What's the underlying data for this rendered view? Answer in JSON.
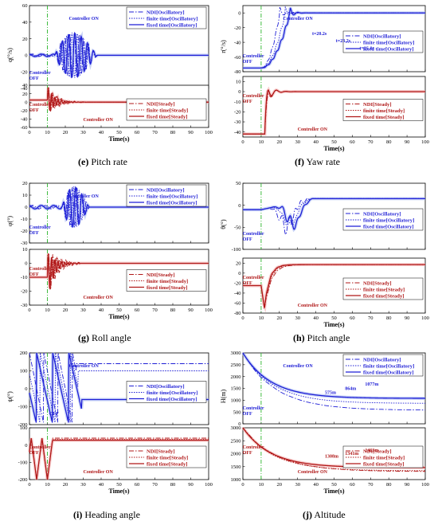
{
  "figure": {
    "captions": [
      {
        "letter": "(e)",
        "text": "Pitch rate"
      },
      {
        "letter": "(f)",
        "text": "Yaw rate"
      },
      {
        "letter": "(g)",
        "text": "Roll angle"
      },
      {
        "letter": "(h)",
        "text": "Pitch angle"
      },
      {
        "letter": "(i)",
        "text": "Heading angle"
      },
      {
        "letter": "(j)",
        "text": "Altitude"
      }
    ],
    "colors": {
      "oscillatory": "#1f1fd6",
      "steady": "#b01818",
      "controller_line": "#2db52d",
      "band_blue": "#9fb3f0",
      "band_red": "#f3a7a7"
    }
  },
  "chart_data": [
    {
      "id": "e_top",
      "type": "line",
      "xlim": [
        0,
        100
      ],
      "ylim": [
        -40,
        60
      ],
      "xticks": [
        0,
        10,
        20,
        30,
        40,
        50,
        60,
        70,
        80,
        90,
        100
      ],
      "yticks": [
        -40,
        -20,
        0,
        20,
        40,
        60
      ],
      "ylabel": "q(°/s)",
      "xlabel": "",
      "show_xtick_labels": false,
      "legend": [
        "NDI[Oscillatory]",
        "finite time[Oscillatory]",
        "fixed time[Oscillatory]"
      ],
      "legend_placement": "top-right",
      "annotations": [
        "Controller ON",
        "Controller OFF"
      ],
      "controller_switch_x": 10,
      "kind": "oscillatory_rate",
      "final": 0,
      "amp": 35,
      "t0": 14,
      "tend": 45
    },
    {
      "id": "e_bot",
      "type": "line",
      "xlim": [
        0,
        100
      ],
      "ylim": [
        -60,
        40
      ],
      "xticks": [
        0,
        10,
        20,
        30,
        40,
        50,
        60,
        70,
        80,
        90,
        100
      ],
      "yticks": [
        -60,
        -40,
        -20,
        0,
        20,
        40
      ],
      "ylabel": "",
      "xlabel": "Time(s)",
      "show_xtick_labels": true,
      "legend": [
        "NDI[Steady]",
        "finite time[Steady]",
        "fixed time[Steady]"
      ],
      "legend_placement": "center-right",
      "annotations": [
        "Controller OFF",
        "Controller ON"
      ],
      "controller_switch_x": 10,
      "kind": "steady_rate",
      "initial": 5,
      "final": 0,
      "amp": 35,
      "t0": 10,
      "tend": 32
    },
    {
      "id": "f_top",
      "type": "line",
      "xlim": [
        0,
        100
      ],
      "ylim": [
        -80,
        10
      ],
      "xticks": [
        0,
        10,
        20,
        30,
        40,
        50,
        60,
        70,
        80,
        90,
        100
      ],
      "yticks": [
        -80,
        -60,
        -40,
        -20,
        0
      ],
      "ylabel": "r(°/s)",
      "xlabel": "",
      "show_xtick_labels": false,
      "legend": [
        "NDI[Oscillatory]",
        "finite time[Oscillatory]",
        "fixed time[Oscillatory]"
      ],
      "legend_placement": "center-right",
      "annotations": [
        "Controller ON",
        "Controller OFF",
        "t=20.2s",
        "t=23.2s",
        "t=25.8s"
      ],
      "controller_switch_x": 10,
      "kind": "yaw_rise",
      "initial": -75,
      "final": 0,
      "rise": [
        20.2,
        23.2,
        25.8
      ]
    },
    {
      "id": "f_bot",
      "type": "line",
      "xlim": [
        0,
        100
      ],
      "ylim": [
        -45,
        15
      ],
      "xticks": [
        0,
        10,
        20,
        30,
        40,
        50,
        60,
        70,
        80,
        90,
        100
      ],
      "yticks": [
        -40,
        -30,
        -20,
        -10,
        0,
        10
      ],
      "ylabel": "",
      "xlabel": "Time(s)",
      "show_xtick_labels": true,
      "legend": [
        "NDI[Steady]",
        "finite time[Steady]",
        "fixed time[Steady]"
      ],
      "legend_placement": "center-right",
      "annotations": [
        "Controller OFF",
        "Controller ON"
      ],
      "controller_switch_x": 10,
      "kind": "yaw_overshoot",
      "initial": -42,
      "final": 0
    },
    {
      "id": "g_top",
      "type": "line",
      "xlim": [
        0,
        100
      ],
      "ylim": [
        -30,
        20
      ],
      "xticks": [
        0,
        10,
        20,
        30,
        40,
        50,
        60,
        70,
        80,
        90,
        100
      ],
      "yticks": [
        -30,
        -20,
        -10,
        0,
        10,
        20
      ],
      "ylabel": "φ(°)",
      "xlabel": "",
      "show_xtick_labels": false,
      "legend": [
        "NDI[Oscillatory]",
        "finite time[Oscillatory]",
        "fixed time[Oscillatory]"
      ],
      "legend_placement": "top-right",
      "annotations": [
        "Controller ON",
        "Controller OFF"
      ],
      "controller_switch_x": 10,
      "kind": "oscillatory_rate",
      "final": 0,
      "amp": 22,
      "t0": 18,
      "tend": 38
    },
    {
      "id": "g_bot",
      "type": "line",
      "xlim": [
        0,
        100
      ],
      "ylim": [
        -30,
        10
      ],
      "xticks": [
        0,
        10,
        20,
        30,
        40,
        50,
        60,
        70,
        80,
        90,
        100
      ],
      "yticks": [
        -30,
        -20,
        -10,
        0,
        10
      ],
      "ylabel": "",
      "xlabel": "Time(s)",
      "show_xtick_labels": true,
      "legend": [
        "NDI[Steady]",
        "finite time[Steady]",
        "fixed time[Steady]"
      ],
      "legend_placement": "center-right",
      "annotations": [
        "Controller OFF",
        "Controller ON"
      ],
      "controller_switch_x": 10,
      "kind": "steady_rate",
      "initial": -10,
      "final": 0,
      "amp": 18,
      "t0": 10,
      "tend": 28
    },
    {
      "id": "h_top",
      "type": "line",
      "xlim": [
        0,
        100
      ],
      "ylim": [
        -100,
        50
      ],
      "xticks": [
        0,
        10,
        20,
        30,
        40,
        50,
        60,
        70,
        80,
        90,
        100
      ],
      "yticks": [
        -100,
        -50,
        0,
        50
      ],
      "ylabel": "θ(°)",
      "xlabel": "",
      "show_xtick_labels": false,
      "legend": [
        "NDI[Oscillatory]",
        "finite time[Oscillatory]",
        "fixed time[Oscillatory]"
      ],
      "legend_placement": "center-right",
      "annotations": [
        "Controller OFF"
      ],
      "controller_switch_x": 10,
      "kind": "pitch_osc",
      "initial": -10,
      "final": 15
    },
    {
      "id": "h_bot",
      "type": "line",
      "xlim": [
        0,
        100
      ],
      "ylim": [
        -80,
        30
      ],
      "xticks": [
        0,
        10,
        20,
        30,
        40,
        50,
        60,
        70,
        80,
        90,
        100
      ],
      "yticks": [
        -80,
        -60,
        -40,
        -20,
        0,
        20
      ],
      "ylabel": "",
      "xlabel": "Time(s)",
      "show_xtick_labels": true,
      "legend": [
        "NDI[Steady]",
        "finite time[Steady]",
        "fixed time[Steady]"
      ],
      "legend_placement": "center-right",
      "annotations": [
        "Controller OFF",
        "Controller ON"
      ],
      "controller_switch_x": 10,
      "kind": "pitch_steady",
      "initial": -25,
      "final": 17
    },
    {
      "id": "i_top",
      "type": "line",
      "xlim": [
        0,
        100
      ],
      "ylim": [
        -200,
        200
      ],
      "xticks": [
        0,
        10,
        20,
        30,
        40,
        50,
        60,
        70,
        80,
        90,
        100
      ],
      "yticks": [
        -200,
        -100,
        0,
        100,
        200
      ],
      "ylabel": "ψ(°)",
      "xlabel": "",
      "show_xtick_labels": false,
      "legend": [
        "NDI[Oscillatory]",
        "finite time[Oscillatory]",
        "fixed time[Oscillatory]"
      ],
      "legend_placement": "center-right",
      "annotations": [
        "Controller ON",
        "OFF"
      ],
      "controller_switch_x": 10,
      "kind": "sawtooth",
      "finals": [
        140,
        100,
        -60
      ]
    },
    {
      "id": "i_bot",
      "type": "line",
      "xlim": [
        0,
        100
      ],
      "ylim": [
        -200,
        100
      ],
      "xticks": [
        0,
        10,
        20,
        30,
        40,
        50,
        60,
        70,
        80,
        90,
        100
      ],
      "yticks": [
        -200,
        -100,
        0,
        100
      ],
      "ylabel": "",
      "xlabel": "Time(s)",
      "show_xtick_labels": true,
      "legend": [
        "NDI[Steady]",
        "finite time[Steady]",
        "fixed time[Steady]"
      ],
      "legend_placement": "center-right",
      "annotations": [
        "Controller OFF",
        "Controller ON"
      ],
      "controller_switch_x": 10,
      "kind": "heading_steady",
      "final": 40
    },
    {
      "id": "j_top",
      "type": "line",
      "xlim": [
        0,
        100
      ],
      "ylim": [
        0,
        3000
      ],
      "xticks": [
        0,
        10,
        20,
        30,
        40,
        50,
        60,
        70,
        80,
        90,
        100
      ],
      "yticks": [
        0,
        500,
        1000,
        1500,
        2000,
        2500,
        3000
      ],
      "ylabel": "H(m)",
      "xlabel": "",
      "show_xtick_labels": false,
      "legend": [
        "NDI[Oscillatory]",
        "finite time[Oscillatory]",
        "fixed time[Oscillatory]"
      ],
      "legend_placement": "top-right",
      "annotations": [
        "Controller OFF",
        "Controller ON",
        "575m",
        "864m",
        "1077m"
      ],
      "controller_switch_x": 10,
      "kind": "altitude",
      "initial": 3000,
      "finals": [
        575,
        864,
        1077
      ]
    },
    {
      "id": "j_bot",
      "type": "line",
      "xlim": [
        0,
        100
      ],
      "ylim": [
        1000,
        3000
      ],
      "xticks": [
        0,
        10,
        20,
        30,
        40,
        50,
        60,
        70,
        80,
        90,
        100
      ],
      "yticks": [
        1000,
        1500,
        2000,
        2500,
        3000
      ],
      "ylabel": "",
      "xlabel": "Time(s)",
      "show_xtick_labels": true,
      "legend": [
        "NDI[Steady]",
        "finite time[Steady]",
        "fixed time[Steady]"
      ],
      "legend_placement": "center-right",
      "annotations": [
        "Controller OFF",
        "Controller ON",
        "1308m",
        "1341m",
        "1463m"
      ],
      "controller_switch_x": 10,
      "kind": "altitude",
      "initial": 3000,
      "finals": [
        1308,
        1341,
        1463
      ]
    }
  ]
}
